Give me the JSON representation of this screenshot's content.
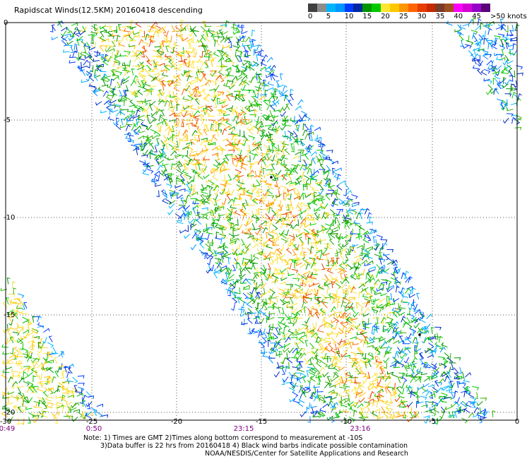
{
  "title": "Rapidscat Winds(12.5KM) 20160418 descending",
  "color_scale": {
    "unit_label": ">50 knots",
    "labels": [
      "0",
      "5",
      "10",
      "15",
      "20",
      "25",
      "30",
      "35",
      "40",
      "45"
    ],
    "colors": [
      "#404040",
      "#8c8c8c",
      "#00b4ff",
      "#0096ff",
      "#003cff",
      "#0028a0",
      "#009600",
      "#00c800",
      "#ffe632",
      "#ffc800",
      "#ff9600",
      "#ff6400",
      "#e63c00",
      "#c82800",
      "#783c28",
      "#a0501e",
      "#ff00ff",
      "#d200d2",
      "#9600c8",
      "#5a0078"
    ]
  },
  "axes": {
    "y_ticks": [
      "0",
      "-5",
      "-10",
      "-15",
      "-20"
    ],
    "x_ticks": [
      "-30",
      "-25",
      "-20",
      "-15",
      "-10",
      "-5",
      "0"
    ]
  },
  "time_labels": [
    "0:49",
    "0:50",
    "23:15",
    "23:16"
  ],
  "notes": [
    "Note: 1) Times are GMT 2)Times along bottom correspond to measurement at -10S",
    "3)Data buffer is 22 hrs from 20160418 4) Black wind barbs indicate possible contamination",
    "NOAA/NESDIS/Center for Satellite Applications and Research"
  ]
}
